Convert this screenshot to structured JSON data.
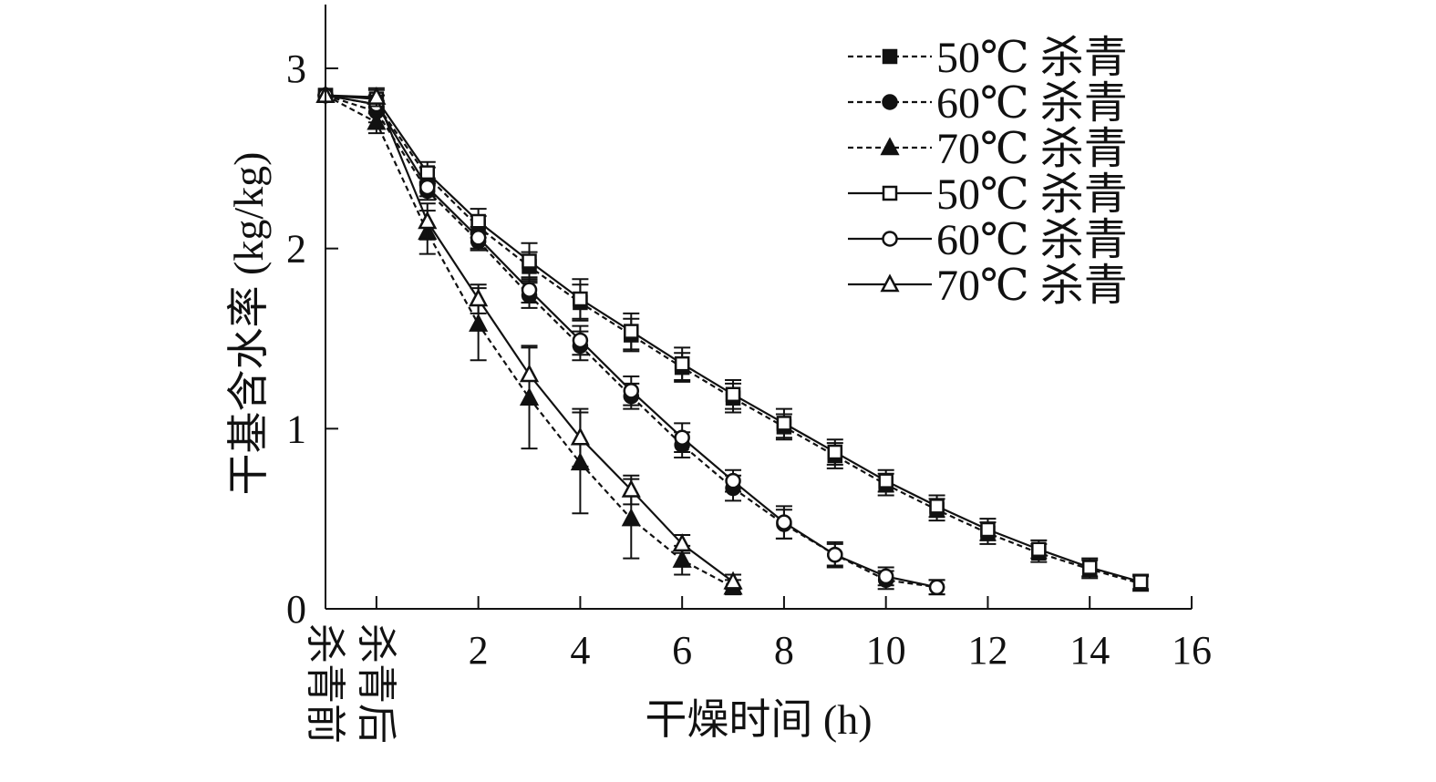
{
  "chart_data": {
    "type": "line",
    "title": "",
    "xlabel": "干燥时间 (h)",
    "ylabel": "干基含水率 (kg/kg)",
    "xlim": [
      -1,
      16
    ],
    "ylim": [
      0,
      3.35
    ],
    "x_ticks": [
      2,
      4,
      6,
      8,
      10,
      12,
      14,
      16
    ],
    "y_ticks": [
      0,
      1,
      2,
      3
    ],
    "categorical_x_ticks": [
      {
        "x": -1,
        "label": "杀青前"
      },
      {
        "x": 0,
        "label": "杀青后"
      }
    ],
    "legend_position": "top-right",
    "series": [
      {
        "name": "50℃ 杀青",
        "line": "dashed",
        "marker": "filled-square",
        "x": [
          -1,
          0,
          1,
          2,
          3,
          4,
          5,
          6,
          7,
          8,
          9,
          10,
          11,
          12,
          13,
          14,
          15
        ],
        "y": [
          2.85,
          2.8,
          2.4,
          2.12,
          1.9,
          1.7,
          1.52,
          1.34,
          1.17,
          1.01,
          0.85,
          0.69,
          0.55,
          0.42,
          0.31,
          0.22,
          0.14
        ],
        "err": [
          0,
          0.05,
          0.05,
          0.06,
          0.08,
          0.1,
          0.09,
          0.08,
          0.08,
          0.07,
          0.07,
          0.06,
          0.06,
          0.06,
          0.05,
          0.05,
          0.04
        ]
      },
      {
        "name": "60℃ 杀青",
        "line": "dashed",
        "marker": "filled-circle",
        "x": [
          -1,
          0,
          1,
          2,
          3,
          4,
          5,
          6,
          7,
          8,
          9,
          10,
          11
        ],
        "y": [
          2.85,
          2.76,
          2.32,
          2.04,
          1.74,
          1.46,
          1.18,
          0.91,
          0.67,
          0.47,
          0.3,
          0.16,
          0.12
        ],
        "err": [
          0,
          0.06,
          0.05,
          0.05,
          0.07,
          0.08,
          0.07,
          0.07,
          0.07,
          0.08,
          0.06,
          0.05,
          0.04
        ]
      },
      {
        "name": "70℃ 杀青",
        "line": "dashed",
        "marker": "filled-triangle",
        "x": [
          -1,
          0,
          1,
          2,
          3,
          4,
          5,
          6,
          7
        ],
        "y": [
          2.85,
          2.7,
          2.09,
          1.58,
          1.17,
          0.81,
          0.5,
          0.27,
          0.12
        ],
        "err": [
          0,
          0.06,
          0.12,
          0.2,
          0.28,
          0.28,
          0.22,
          0.08,
          0.04
        ]
      },
      {
        "name": "50℃ 杀青",
        "line": "solid",
        "marker": "open-square",
        "x": [
          -1,
          0,
          1,
          2,
          3,
          4,
          5,
          6,
          7,
          8,
          9,
          10,
          11,
          12,
          13,
          14,
          15
        ],
        "y": [
          2.85,
          2.83,
          2.42,
          2.15,
          1.93,
          1.72,
          1.54,
          1.36,
          1.19,
          1.03,
          0.87,
          0.71,
          0.57,
          0.44,
          0.33,
          0.23,
          0.15
        ],
        "err": [
          0,
          0.05,
          0.06,
          0.07,
          0.1,
          0.11,
          0.1,
          0.09,
          0.08,
          0.08,
          0.07,
          0.06,
          0.06,
          0.06,
          0.05,
          0.05,
          0.04
        ]
      },
      {
        "name": "60℃ 杀青",
        "line": "solid",
        "marker": "open-circle",
        "x": [
          -1,
          0,
          1,
          2,
          3,
          4,
          5,
          6,
          7,
          8,
          9,
          10,
          11
        ],
        "y": [
          2.85,
          2.8,
          2.34,
          2.06,
          1.77,
          1.49,
          1.21,
          0.95,
          0.71,
          0.48,
          0.3,
          0.18,
          0.12
        ],
        "err": [
          0,
          0.05,
          0.05,
          0.06,
          0.07,
          0.08,
          0.08,
          0.08,
          0.06,
          0.09,
          0.07,
          0.05,
          0.04
        ]
      },
      {
        "name": "70℃ 杀青",
        "line": "solid",
        "marker": "open-triangle",
        "x": [
          -1,
          0,
          1,
          2,
          3,
          4,
          5,
          6,
          7
        ],
        "y": [
          2.85,
          2.84,
          2.15,
          1.72,
          1.3,
          0.95,
          0.66,
          0.36,
          0.15
        ],
        "err": [
          0,
          0.05,
          0.1,
          0.08,
          0.16,
          0.16,
          0.08,
          0.05,
          0.04
        ]
      }
    ]
  }
}
